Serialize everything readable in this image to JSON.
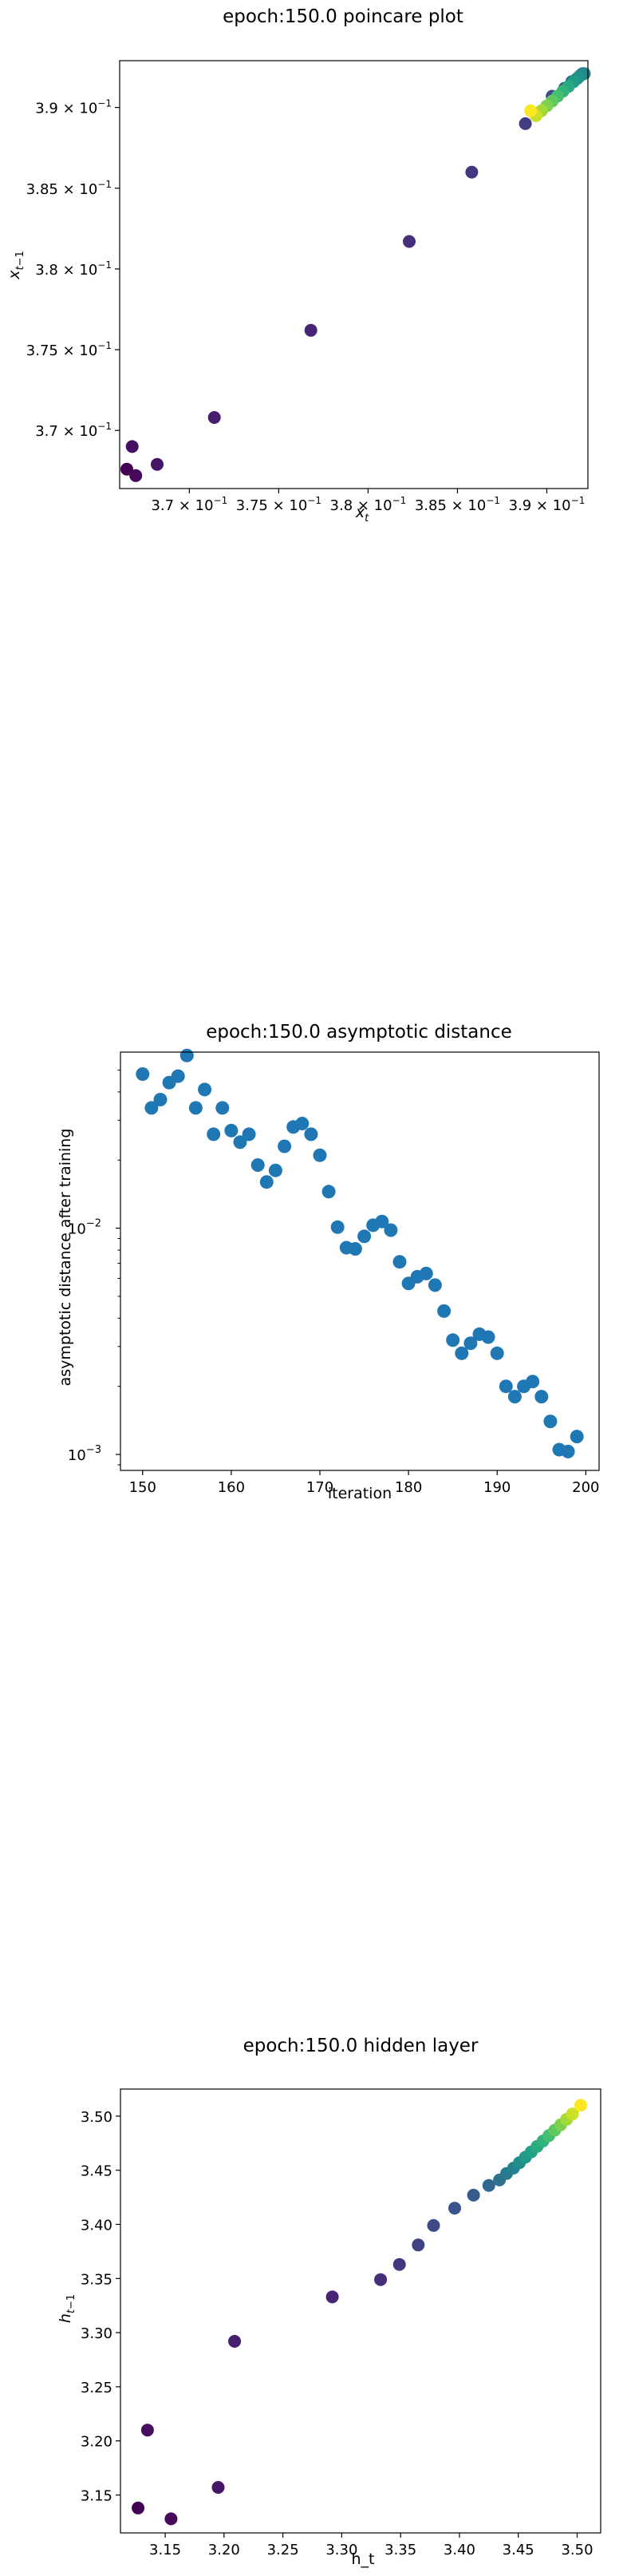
{
  "chart_data": [
    {
      "type": "scatter",
      "title": "epoch:150.0 poincare plot",
      "xlabel": "x_t",
      "ylabel": "x_{t-1}",
      "xlim": [
        0.3661,
        0.3923
      ],
      "ylim": [
        0.3664,
        0.3929
      ],
      "xticks": [
        0.37,
        0.375,
        0.38,
        0.385,
        0.39
      ],
      "xtick_labels": [
        "3.7 × 10",
        "3.75 × 10",
        "3.8 × 10",
        "3.85 × 10",
        "3.9 × 10"
      ],
      "yticks": [
        0.37,
        0.375,
        0.38,
        0.385,
        0.39
      ],
      "ytick_labels": [
        "3.7 × 10",
        "3.75 × 10",
        "3.8 × 10",
        "3.85 × 10",
        "3.9 × 10"
      ],
      "tick_exponent": "−1",
      "colormap": "viridis",
      "x": [
        0.3665,
        0.367,
        0.3668,
        0.3682,
        0.3714,
        0.3768,
        0.3823,
        0.3858,
        0.3888,
        0.3903,
        0.391,
        0.3914,
        0.3917,
        0.3919,
        0.392,
        0.3921,
        0.3918,
        0.3915,
        0.3912,
        0.3909,
        0.3906,
        0.3903,
        0.39,
        0.3897,
        0.3894,
        0.3891
      ],
      "y": [
        0.3676,
        0.3672,
        0.369,
        0.3679,
        0.3708,
        0.3762,
        0.3817,
        0.386,
        0.389,
        0.3907,
        0.3912,
        0.3916,
        0.3918,
        0.392,
        0.3921,
        0.3921,
        0.3919,
        0.3916,
        0.3913,
        0.391,
        0.3907,
        0.3904,
        0.3901,
        0.3898,
        0.3895,
        0.3898
      ],
      "c": [
        0.0,
        0.02,
        0.04,
        0.06,
        0.08,
        0.1,
        0.13,
        0.16,
        0.18,
        0.22,
        0.26,
        0.3,
        0.34,
        0.38,
        0.42,
        0.46,
        0.5,
        0.55,
        0.6,
        0.65,
        0.7,
        0.75,
        0.8,
        0.86,
        0.92,
        1.0
      ]
    },
    {
      "type": "scatter",
      "title": "epoch:150.0 asymptotic distance",
      "xlabel": "iteration",
      "ylabel": "asymptotic distance after training",
      "xlim": [
        147.5,
        201.5
      ],
      "ylim": [
        0.00085,
        0.06
      ],
      "yscale": "log",
      "xticks": [
        150,
        160,
        170,
        180,
        190,
        200
      ],
      "yticks_exp": [
        -3,
        -2
      ],
      "ytick_labels": [
        "10",
        "10"
      ],
      "color": "#1f77b4",
      "x": [
        150,
        151,
        152,
        153,
        154,
        155,
        156,
        157,
        158,
        159,
        160,
        161,
        162,
        163,
        164,
        165,
        166,
        167,
        168,
        169,
        170,
        171,
        172,
        173,
        174,
        175,
        176,
        177,
        178,
        179,
        180,
        181,
        182,
        183,
        184,
        185,
        186,
        187,
        188,
        189,
        190,
        191,
        192,
        193,
        194,
        195,
        196,
        197,
        198,
        199
      ],
      "y": [
        0.048,
        0.034,
        0.037,
        0.044,
        0.047,
        0.058,
        0.034,
        0.041,
        0.026,
        0.034,
        0.027,
        0.024,
        0.026,
        0.019,
        0.016,
        0.018,
        0.023,
        0.028,
        0.029,
        0.026,
        0.021,
        0.0145,
        0.0101,
        0.0082,
        0.0081,
        0.0092,
        0.0103,
        0.0107,
        0.0098,
        0.0071,
        0.0057,
        0.0061,
        0.0063,
        0.0056,
        0.0043,
        0.0032,
        0.0028,
        0.0031,
        0.0034,
        0.0033,
        0.0028,
        0.002,
        0.0018,
        0.002,
        0.0021,
        0.0018,
        0.0014,
        0.00105,
        0.00103,
        0.0012
      ]
    },
    {
      "type": "scatter",
      "title": "epoch:150.0 hidden layer",
      "xlabel": "h_t",
      "ylabel": "h_{t-1}",
      "xlim": [
        3.112,
        3.52
      ],
      "ylim": [
        3.115,
        3.525
      ],
      "xticks": [
        3.15,
        3.2,
        3.25,
        3.3,
        3.35,
        3.4,
        3.45,
        3.5
      ],
      "xtick_labels": [
        "3.15",
        "3.20",
        "3.25",
        "3.30",
        "3.35",
        "3.40",
        "3.45",
        "3.50"
      ],
      "yticks": [
        3.15,
        3.2,
        3.25,
        3.3,
        3.35,
        3.4,
        3.45,
        3.5
      ],
      "ytick_labels": [
        "3.15",
        "3.20",
        "3.25",
        "3.30",
        "3.35",
        "3.40",
        "3.45",
        "3.50"
      ],
      "colormap": "viridis",
      "x": [
        3.127,
        3.155,
        3.135,
        3.195,
        3.209,
        3.292,
        3.333,
        3.349,
        3.365,
        3.378,
        3.396,
        3.412,
        3.425,
        3.434,
        3.44,
        3.446,
        3.451,
        3.456,
        3.461,
        3.466,
        3.471,
        3.476,
        3.481,
        3.486,
        3.491,
        3.496,
        3.503
      ],
      "y": [
        3.138,
        3.128,
        3.21,
        3.157,
        3.292,
        3.333,
        3.349,
        3.363,
        3.381,
        3.399,
        3.415,
        3.427,
        3.436,
        3.441,
        3.447,
        3.452,
        3.457,
        3.462,
        3.467,
        3.472,
        3.477,
        3.482,
        3.487,
        3.492,
        3.497,
        3.502,
        3.51
      ],
      "c": [
        0.0,
        0.02,
        0.04,
        0.06,
        0.08,
        0.1,
        0.13,
        0.16,
        0.19,
        0.22,
        0.25,
        0.29,
        0.33,
        0.37,
        0.41,
        0.45,
        0.49,
        0.53,
        0.57,
        0.61,
        0.65,
        0.7,
        0.75,
        0.8,
        0.86,
        0.92,
        1.0
      ]
    }
  ]
}
